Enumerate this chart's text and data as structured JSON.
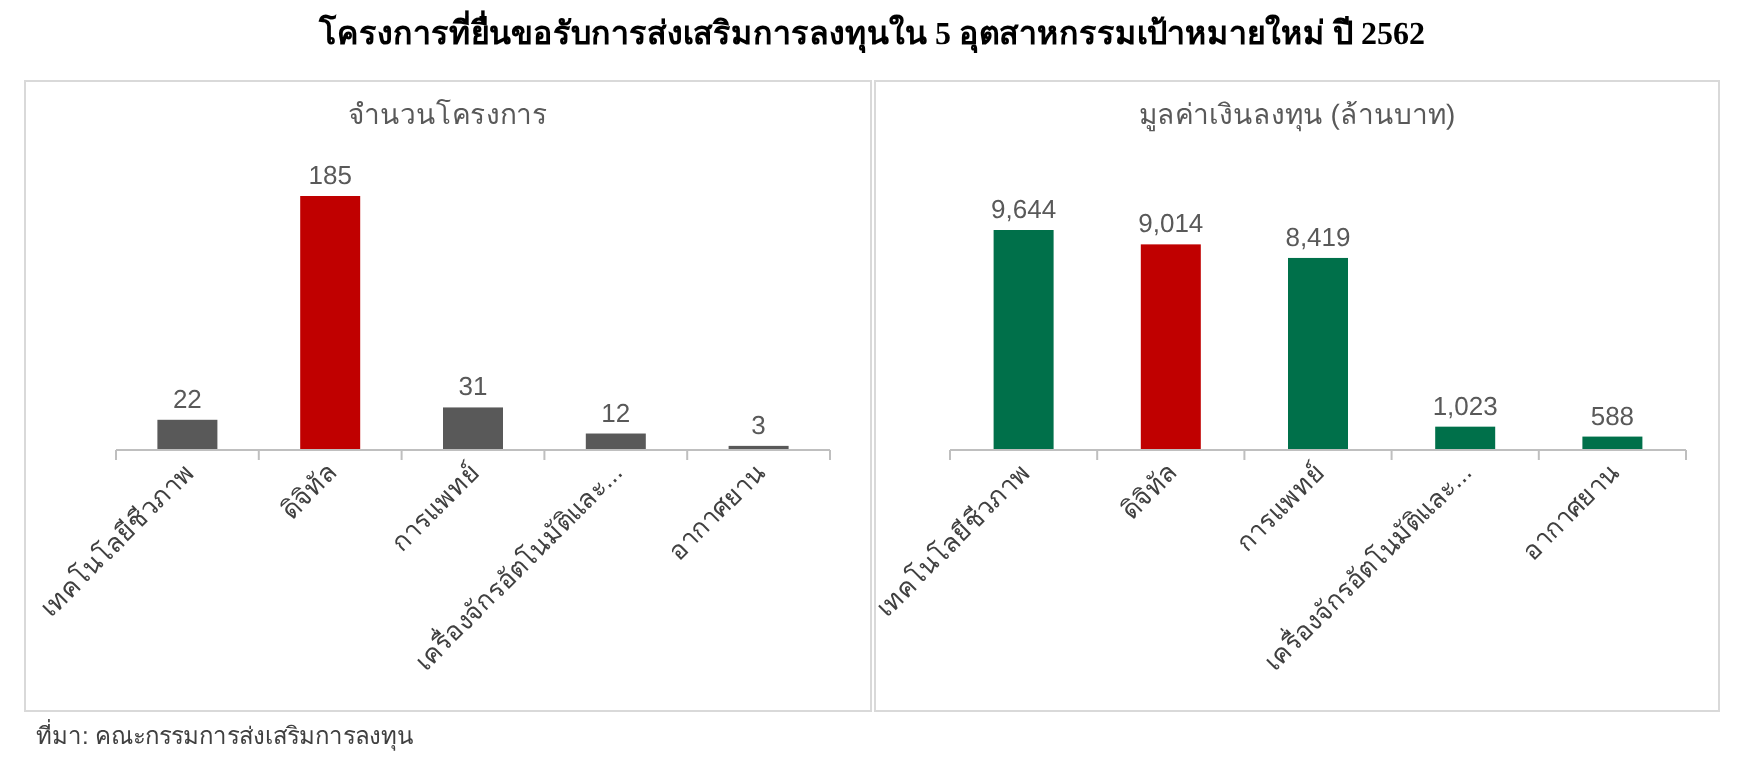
{
  "chart_data": [
    {
      "type": "bar",
      "title": "โครงการที่ยื่นขอรับการส่งเสริมการลงทุนใน 5 อุตสาหกรรมเป้าหมายใหม่ ปี 2562",
      "subtitle": "จำนวนโครงการ",
      "categories": [
        "เทคโนโลยีชีวภาพ",
        "ดิจิทัล",
        "การแพทย์",
        "เครื่องจักรอัตโนมัติและ...",
        "อากาศยาน"
      ],
      "values": [
        22,
        185,
        31,
        12,
        3
      ],
      "colors": [
        "#595959",
        "#c00000",
        "#595959",
        "#595959",
        "#595959"
      ],
      "data_labels": true,
      "annotations": [
        "ที่มา: คณะกรรมการส่งเสริมการลงทุน"
      ]
    },
    {
      "type": "bar",
      "subtitle": "มูลค่าเงินลงทุน (ล้านบาท)",
      "categories": [
        "เทคโนโลยีชีวภาพ",
        "ดิจิทัล",
        "การแพทย์",
        "เครื่องจักรอัตโนมัติและ...",
        "อากาศยาน"
      ],
      "values": [
        9644,
        9014,
        8419,
        1023,
        588
      ],
      "value_labels": [
        "9,644",
        "9,014",
        "8,419",
        "1,023",
        "588"
      ],
      "colors": [
        "#00704a",
        "#c00000",
        "#00704a",
        "#00704a",
        "#00704a"
      ]
    }
  ]
}
